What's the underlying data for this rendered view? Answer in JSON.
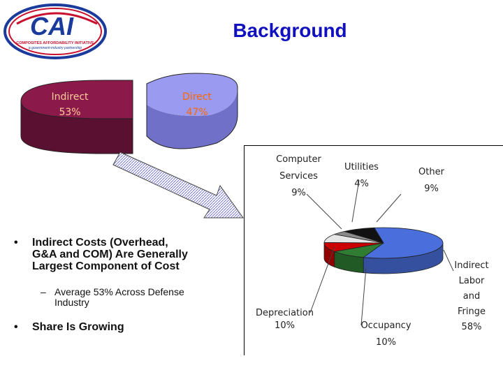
{
  "logo": {
    "text": "CAI",
    "tagline1": "COMPOSITES AFFORDABILITY INITIATIVE",
    "tagline2": "a government-industry partnership"
  },
  "title": "Background",
  "bullets": {
    "b1": {
      "marker": "•",
      "lines": [
        "Indirect Costs (Overhead,",
        "G&A and COM) Are Generally",
        "Largest Component of Cost"
      ]
    },
    "sub1": {
      "marker": "–",
      "lines": [
        "Average 53% Across Defense",
        "Industry"
      ]
    },
    "b2": {
      "marker": "•",
      "lines": [
        "Share Is Growing"
      ]
    }
  },
  "chart_data": [
    {
      "type": "pie",
      "style": "3d",
      "slices": [
        {
          "label": "Indirect",
          "value": 53,
          "display": "53%",
          "color": "#8b1a4a"
        },
        {
          "label": "Direct",
          "value": 47,
          "display": "47%",
          "color": "#9a9af0"
        }
      ]
    },
    {
      "type": "pie",
      "style": "3d",
      "slices": [
        {
          "label": "Indirect Labor and Fringe",
          "value": 58,
          "display": "58%",
          "color": "#4a6fdc"
        },
        {
          "label": "Occupancy",
          "value": 10,
          "display": "10%",
          "color": "#2e7d32"
        },
        {
          "label": "Depreciation",
          "value": 10,
          "display": "10%",
          "color": "#cc0000"
        },
        {
          "label": "Computer Services",
          "value": 9,
          "display": "9%",
          "color": "#e6e6e6"
        },
        {
          "label": "Utilities",
          "value": 4,
          "display": "4%",
          "color": "#8a8a8a"
        },
        {
          "label": "Other",
          "value": 9,
          "display": "9%",
          "color": "#111111"
        }
      ],
      "labels": {
        "computer": [
          "Computer",
          "Services",
          "9%"
        ],
        "utilities": [
          "Utilities",
          "4%"
        ],
        "other": [
          "Other",
          "9%"
        ],
        "indirect": [
          "Indirect",
          "Labor",
          "and",
          "Fringe",
          "58%"
        ],
        "depreciation": [
          "Depreciation",
          "10%"
        ],
        "occupancy": [
          "Occupancy",
          "10%"
        ]
      }
    }
  ]
}
